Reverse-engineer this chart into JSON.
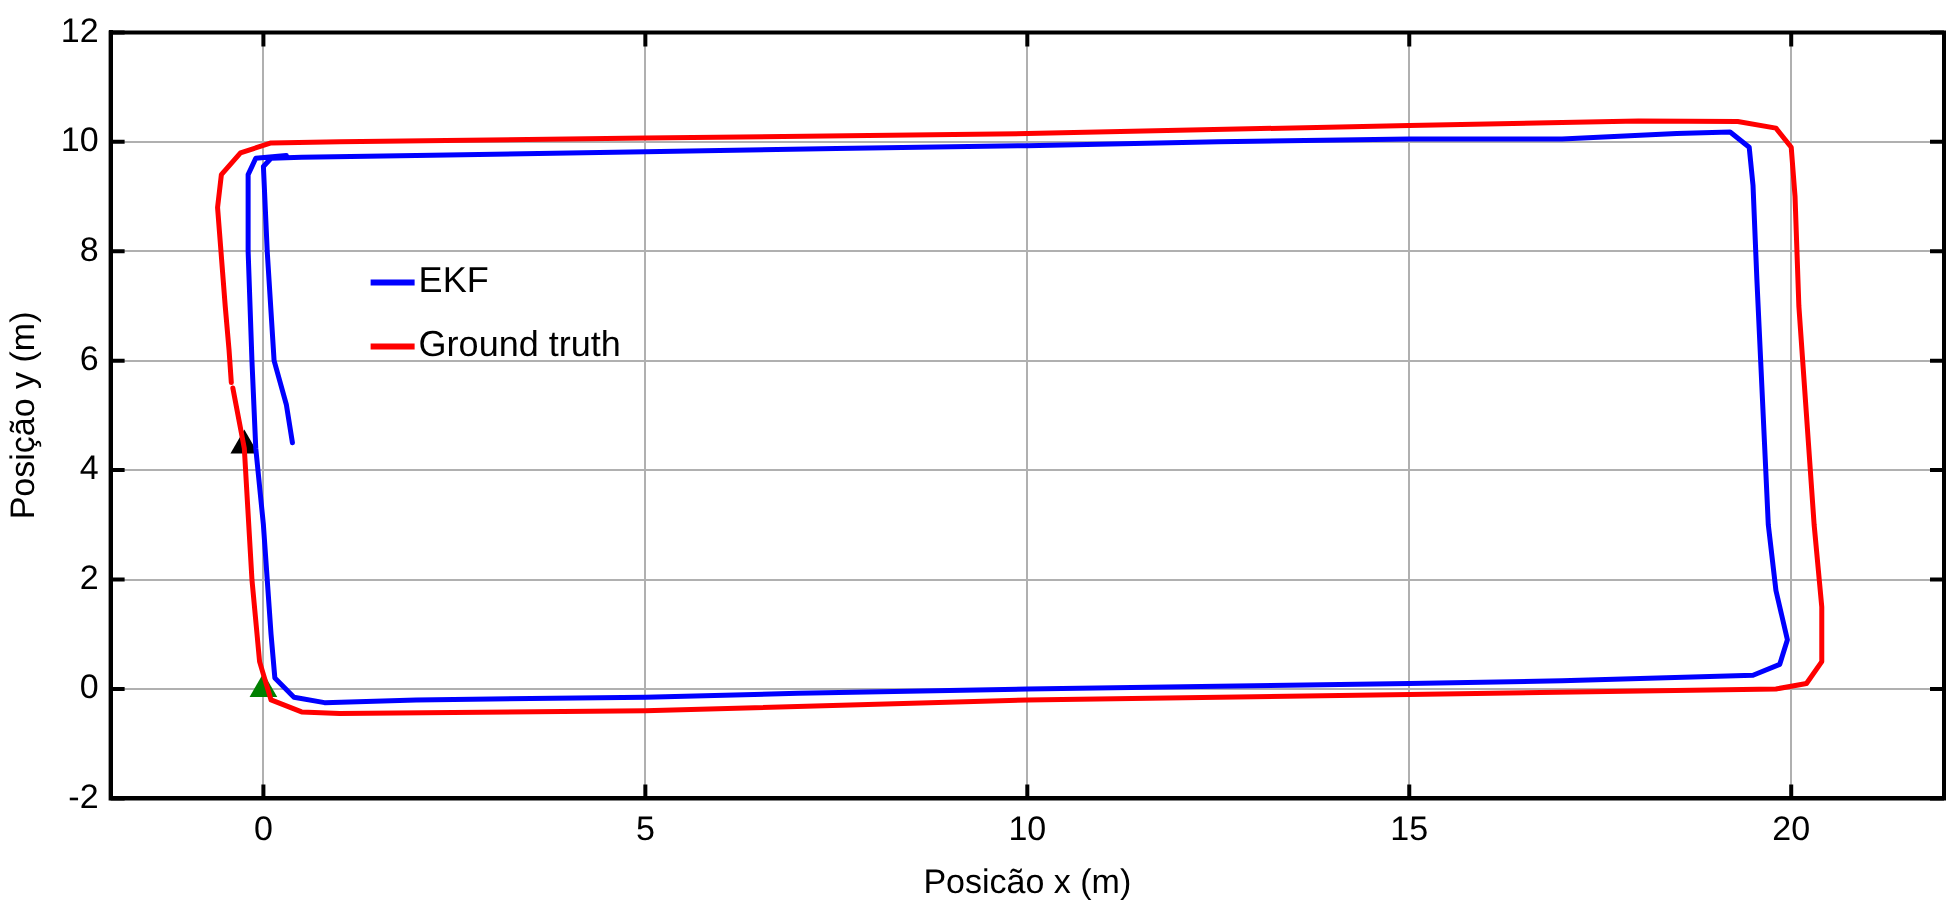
{
  "chart_data": {
    "type": "line",
    "xlabel": "Posicão x (m)",
    "ylabel": "Posição y (m)",
    "xlim": [
      -2,
      22
    ],
    "ylim": [
      -2,
      12
    ],
    "xticks": [
      0,
      5,
      10,
      15,
      20
    ],
    "yticks": [
      -2,
      0,
      2,
      4,
      6,
      8,
      10,
      12
    ],
    "grid": true,
    "legend": "top left",
    "marker": "none",
    "line_style": "solid",
    "series": [
      {
        "name": "EKF",
        "color": "#0000ff",
        "x": [
          0.38,
          0.3,
          0.14,
          0.05,
          0.0,
          0.1,
          0.5,
          2,
          5,
          7.5,
          10,
          12.5,
          15,
          17,
          18.5,
          19.2,
          19.45,
          19.5,
          19.55,
          19.6,
          19.65,
          19.7,
          19.8,
          19.95,
          19.85,
          19.5,
          17,
          15,
          12.5,
          10,
          7,
          5,
          2,
          0.8,
          0.4,
          0.15,
          0.1,
          0.05,
          0.0,
          -0.1,
          -0.15,
          -0.2,
          -0.2,
          -0.1,
          0.3
        ],
        "values": [
          4.5,
          5.2,
          6,
          8,
          9.55,
          9.7,
          9.72,
          9.75,
          9.82,
          9.88,
          9.93,
          10.0,
          10.05,
          10.05,
          10.15,
          10.18,
          9.9,
          9.2,
          7.5,
          6,
          4.5,
          3,
          1.8,
          0.9,
          0.45,
          0.25,
          0.15,
          0.1,
          0.05,
          0.0,
          -0.08,
          -0.15,
          -0.2,
          -0.25,
          -0.15,
          0.2,
          1,
          2,
          3,
          4.4,
          6,
          8,
          9.4,
          9.7,
          9.75
        ]
      },
      {
        "name": "Ground truth",
        "color": "#ff0000",
        "x": [
          -0.4,
          -0.25,
          -0.15,
          -0.05,
          0.1,
          0.5,
          1,
          5,
          10,
          15,
          19.8,
          20.2,
          20.4,
          20.4,
          20.3,
          20.2,
          20.1,
          20.05,
          20,
          19.8,
          19.3,
          18,
          15,
          10,
          5,
          1,
          0.1,
          -0.3,
          -0.55,
          -0.6,
          -0.5,
          -0.45,
          -0.42
        ],
        "values": [
          5.5,
          4.4,
          2,
          0.5,
          -0.2,
          -0.42,
          -0.45,
          -0.4,
          -0.2,
          -0.1,
          0,
          0.1,
          0.5,
          1.5,
          3,
          5,
          7,
          9,
          9.9,
          10.25,
          10.37,
          10.38,
          10.3,
          10.15,
          10.07,
          10.0,
          9.98,
          9.8,
          9.4,
          8.8,
          7,
          6.2,
          5.6
        ]
      },
      {
        "type": "scatter",
        "color": "#000000",
        "marker": "triangle",
        "x": [
          -0.25
        ],
        "values": [
          4.45
        ]
      },
      {
        "type": "scatter",
        "color": "#008000",
        "marker": "triangle",
        "x": [
          0
        ],
        "values": [
          0
        ]
      }
    ]
  }
}
